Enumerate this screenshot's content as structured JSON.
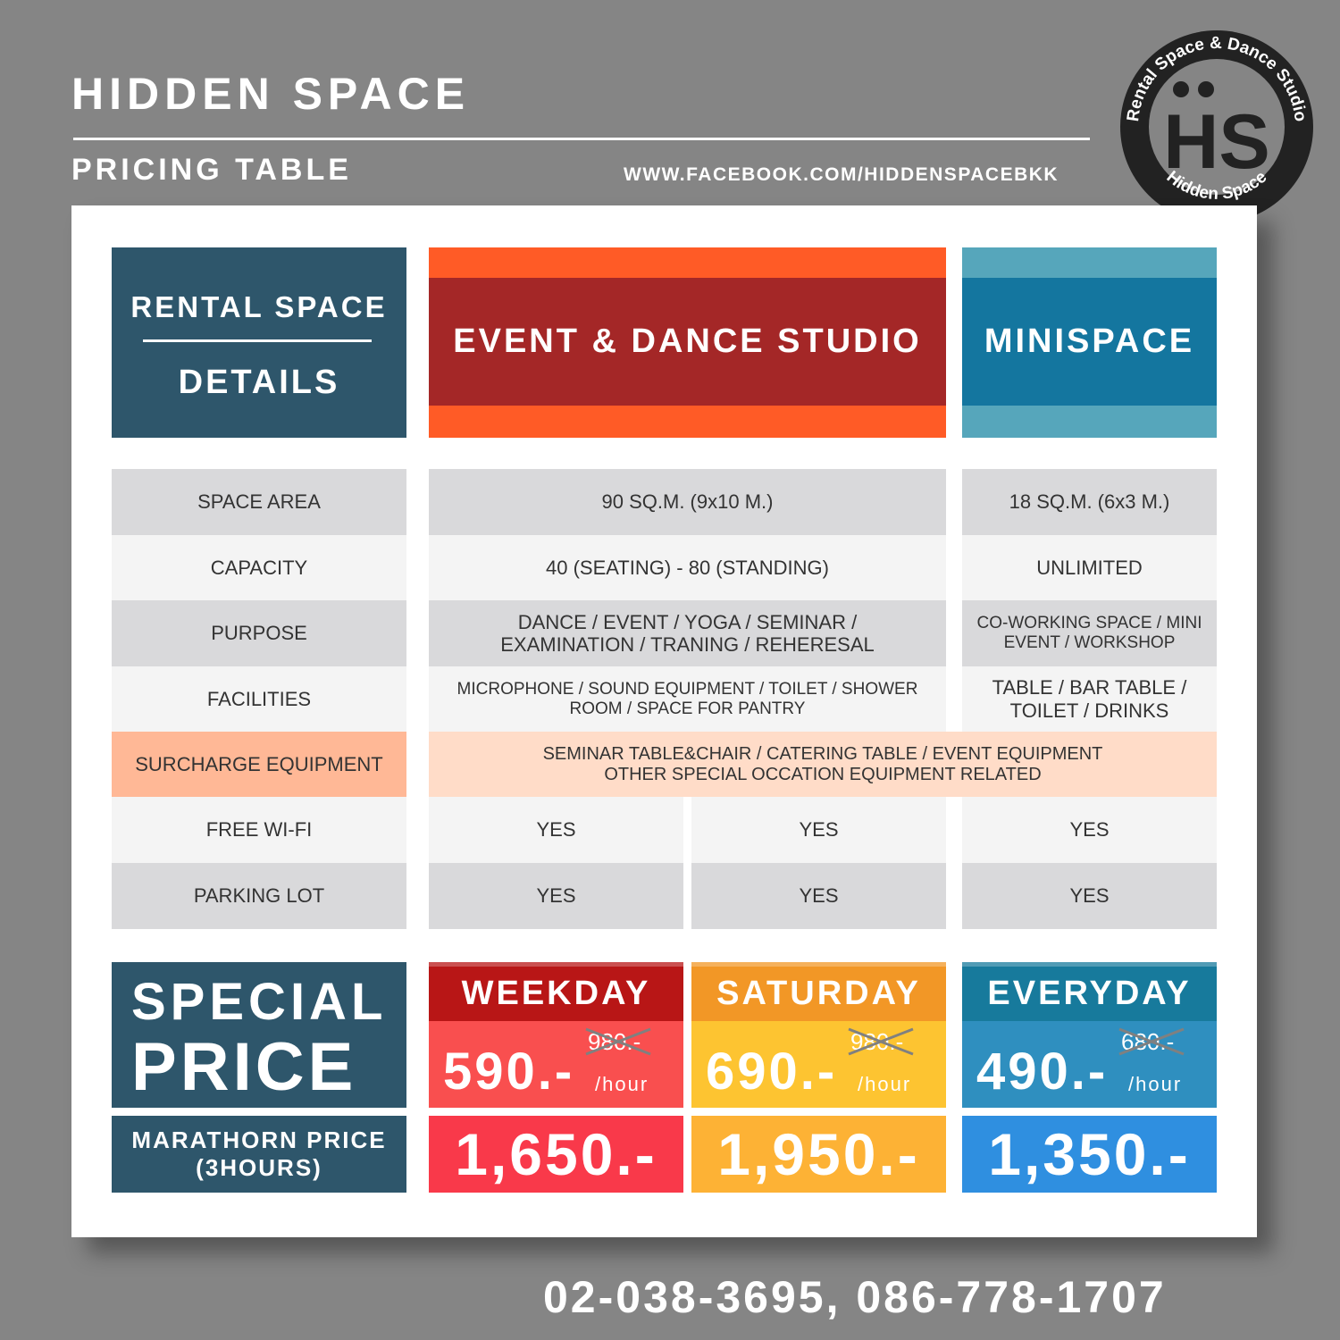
{
  "header": {
    "title": "HIDDEN SPACE",
    "subtitle": "PRICING TABLE",
    "url": "WWW.FACEBOOK.COM/HIDDENSPACEBKK"
  },
  "logo": {
    "ring_top": "Rental Space & Dance Studio",
    "monogram": "HS",
    "ring_bottom": "Hidden Space"
  },
  "columns": {
    "details_top": "RENTAL SPACE",
    "details_bottom": "DETAILS",
    "event": "EVENT & DANCE STUDIO",
    "mini": "MINISPACE"
  },
  "rows": [
    {
      "label": "SPACE AREA",
      "event": "90 SQ.M. (9x10 M.)",
      "mini": "18 SQ.M. (6x3 M.)"
    },
    {
      "label": "CAPACITY",
      "event": "40 (SEATING) - 80 (STANDING)",
      "mini": "UNLIMITED"
    },
    {
      "label": "PURPOSE",
      "event": "DANCE / EVENT / YOGA / SEMINAR / EXAMINATION / TRANING / REHERESAL",
      "mini": "CO-WORKING SPACE / MINI EVENT / WORKSHOP"
    },
    {
      "label": "FACILITIES",
      "event": "MICROPHONE / SOUND EQUIPMENT / TOILET / SHOWER ROOM / SPACE FOR PANTRY",
      "mini": "TABLE / BAR TABLE / TOILET / DRINKS"
    }
  ],
  "surcharge": {
    "label": "SURCHARGE EQUIPMENT",
    "line1": "SEMINAR TABLE&CHAIR / CATERING TABLE / EVENT EQUIPMENT",
    "line2": "OTHER SPECIAL OCCATION EQUIPMENT RELATED"
  },
  "wifi": {
    "label": "FREE WI-FI",
    "values": [
      "YES",
      "YES",
      "YES"
    ]
  },
  "parking": {
    "label": "PARKING LOT",
    "values": [
      "YES",
      "YES",
      "YES"
    ]
  },
  "special": {
    "line1": "SPECIAL",
    "line2": "PRICE",
    "marathon1": "MARATHORN PRICE",
    "marathon2": "(3HOURS)"
  },
  "prices": [
    {
      "day": "WEEKDAY",
      "price": "590.-",
      "old": "980.-",
      "unit": "/hour",
      "marathon": "1,650.-",
      "head": "#b81616",
      "body": "#f94f4f",
      "mar": "#f9394a"
    },
    {
      "day": "SATURDAY",
      "price": "690.-",
      "old": "980.-",
      "unit": "/hour",
      "marathon": "1,950.-",
      "head": "#f29726",
      "body": "#fdc431",
      "mar": "#fdb235"
    },
    {
      "day": "EVERYDAY",
      "price": "490.-",
      "old": "680.-",
      "unit": "/hour",
      "marathon": "1,350.-",
      "head": "#177a9c",
      "body": "#2f8fbf",
      "mar": "#2f8fe0"
    }
  ],
  "contact": {
    "phone": "02-038-3695, 086-778-1707"
  }
}
